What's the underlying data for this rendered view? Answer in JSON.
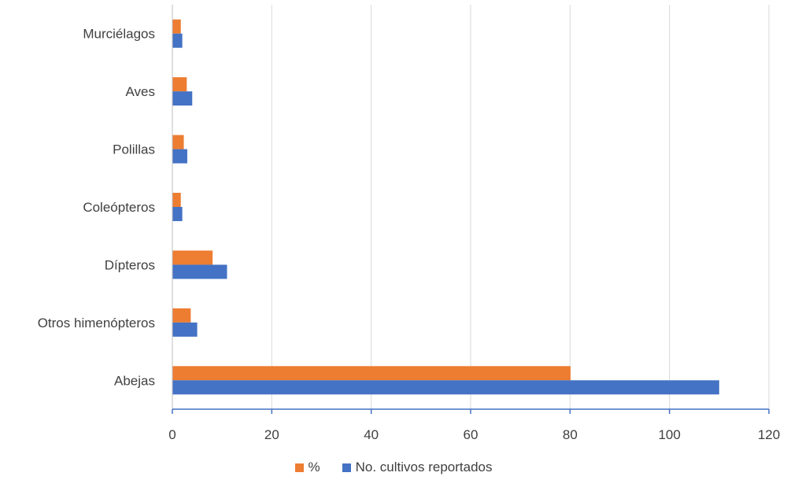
{
  "chart_data": {
    "type": "bar",
    "orientation": "horizontal",
    "categories": [
      "Murciélagos",
      "Aves",
      "Polillas",
      "Coleópteros",
      "Dípteros",
      "Otros himenópteros",
      "Abejas"
    ],
    "series": [
      {
        "name": "%",
        "color": "#ED7D31",
        "values": [
          1.7,
          2.9,
          2.3,
          1.7,
          8.1,
          3.7,
          80.1
        ]
      },
      {
        "name": "No. cultivos reportados",
        "color": "#4472C4",
        "values": [
          2,
          4,
          3,
          2,
          11,
          5,
          110
        ]
      }
    ],
    "xlim": [
      0,
      120
    ],
    "xticks": [
      0,
      20,
      40,
      60,
      80,
      100,
      120
    ],
    "title": "",
    "xlabel": "",
    "ylabel": "",
    "grid": "vertical",
    "legend_position": "bottom"
  }
}
